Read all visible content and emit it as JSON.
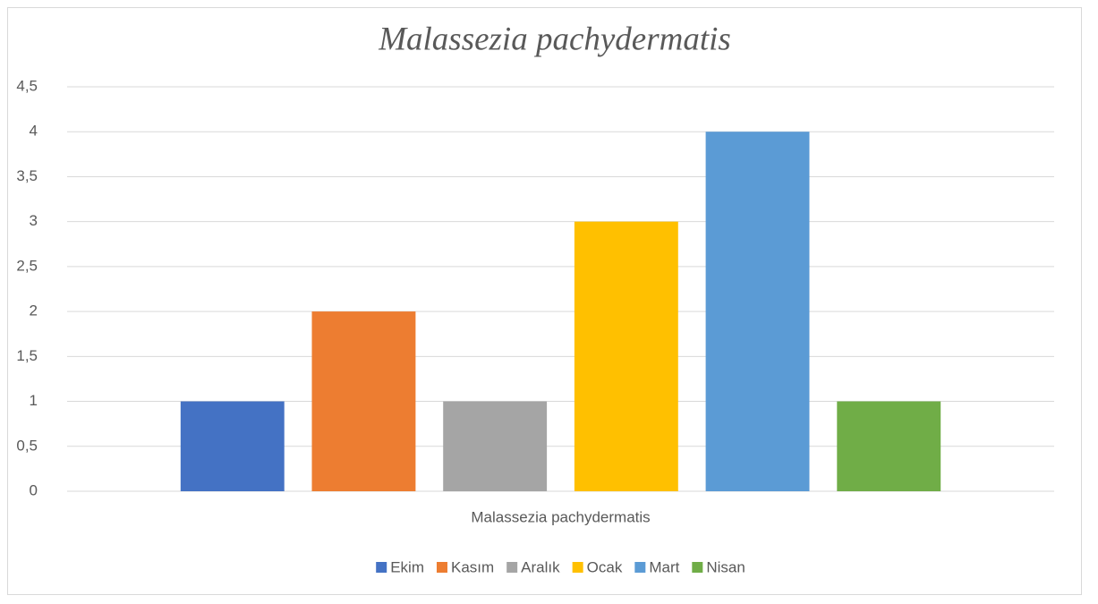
{
  "chart_data": {
    "type": "bar",
    "title": "Malassezia pachydermatis",
    "categories": [
      "Malassezia pachydermatis"
    ],
    "series": [
      {
        "name": "Ekim",
        "color": "#4472c4",
        "values": [
          1
        ]
      },
      {
        "name": "Kasım",
        "color": "#ed7d31",
        "values": [
          2
        ]
      },
      {
        "name": "Aralık",
        "color": "#a5a5a5",
        "values": [
          1
        ]
      },
      {
        "name": "Ocak",
        "color": "#ffc000",
        "values": [
          3
        ]
      },
      {
        "name": "Mart",
        "color": "#5b9bd5",
        "values": [
          4
        ]
      },
      {
        "name": "Nisan",
        "color": "#70ad47",
        "values": [
          1
        ]
      }
    ],
    "ylim": [
      0,
      4.5
    ],
    "yticks": [
      0,
      {
        "value": 0.5,
        "label": "0,5"
      },
      1,
      {
        "value": 1.5,
        "label": "1,5"
      },
      2,
      {
        "value": 2.5,
        "label": "2,5"
      },
      3,
      {
        "value": 3.5,
        "label": "3,5"
      },
      4,
      {
        "value": 4.5,
        "label": "4,5"
      }
    ],
    "grid": true,
    "legend": "bottom"
  }
}
